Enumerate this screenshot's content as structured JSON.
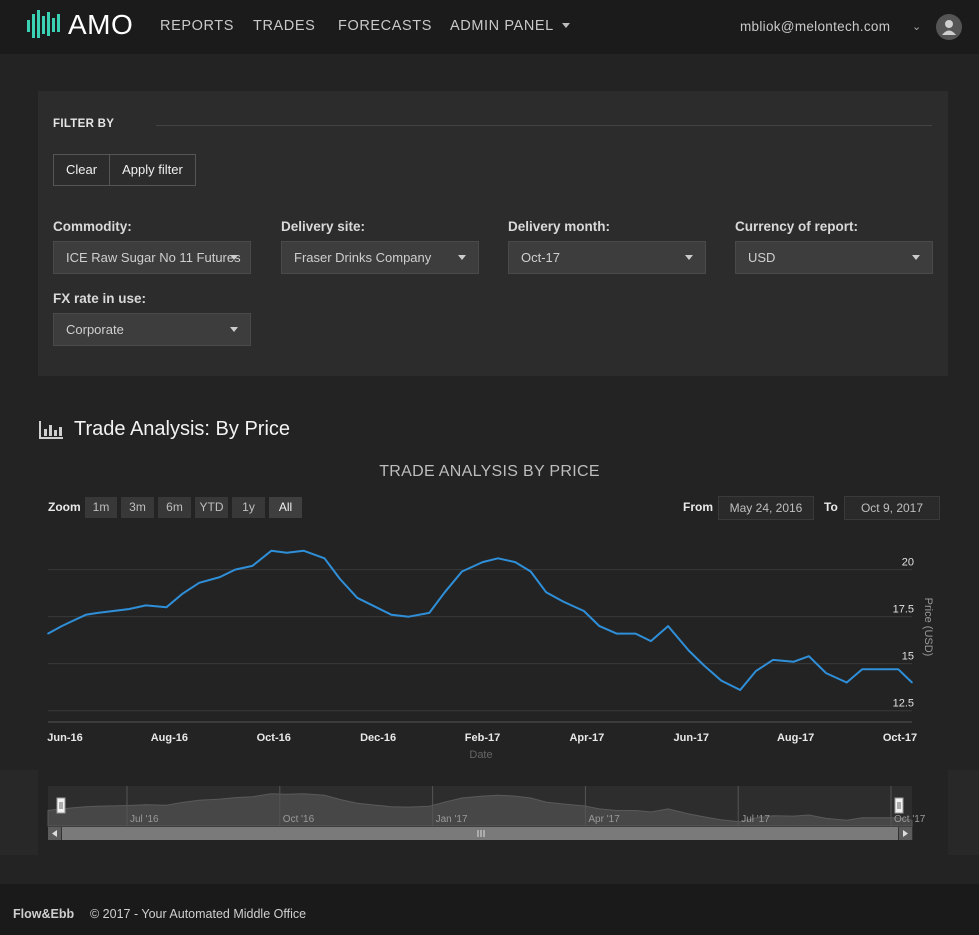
{
  "app": {
    "logo_text": "AMO",
    "nav": [
      {
        "label": "REPORTS"
      },
      {
        "label": "TRADES"
      },
      {
        "label": "FORECASTS"
      },
      {
        "label": "ADMIN PANEL"
      }
    ],
    "user_email": "mbliok@melontech.com",
    "icons": {
      "admin_dropdown": "caret-down-icon",
      "user_dropdown": "chevron-down-icon",
      "avatar": "user-avatar-icon",
      "section": "bar-chart-icon"
    }
  },
  "filter": {
    "title": "FILTER BY",
    "clear_label": "Clear",
    "apply_label": "Apply filter",
    "fields": [
      {
        "label": "Commodity:",
        "value": "ICE Raw Sugar No 11 Futures"
      },
      {
        "label": "Delivery site:",
        "value": "Fraser Drinks Company"
      },
      {
        "label": "Delivery month:",
        "value": "Oct-17"
      },
      {
        "label": "Currency of report:",
        "value": "USD"
      },
      {
        "label": "FX rate in use:",
        "value": "Corporate"
      }
    ]
  },
  "section": {
    "title": "Trade Analysis: By Price"
  },
  "chart_controls": {
    "zoom_label": "Zoom",
    "zoom_buttons": [
      "1m",
      "3m",
      "6m",
      "YTD",
      "1y",
      "All"
    ],
    "active_zoom": "All",
    "from_label": "From",
    "from_value": "May 24, 2016",
    "to_label": "To",
    "to_value": "Oct 9, 2017"
  },
  "chart_data": {
    "type": "line",
    "title": "TRADE ANALYSIS BY PRICE",
    "xlabel": "Date",
    "ylabel": "Price (USD)",
    "x_tick_labels": [
      "Jun-16",
      "Aug-16",
      "Oct-16",
      "Dec-16",
      "Feb-17",
      "Apr-17",
      "Jun-17",
      "Aug-17",
      "Oct-17"
    ],
    "y_ticks": [
      12.5,
      15,
      17.5,
      20
    ],
    "ylim": [
      11.9,
      22
    ],
    "grid": true,
    "color": "#2f8fd8",
    "navigator_labels": [
      "Jul '16",
      "Oct '16",
      "Jan '17",
      "Apr '17",
      "Jul '17",
      "Oct '17"
    ],
    "series": [
      {
        "x": [
          "2016-05-24",
          "2016-06-01",
          "2016-06-08",
          "2016-06-15",
          "2016-06-22",
          "2016-07-01",
          "2016-07-10",
          "2016-07-20",
          "2016-08-01",
          "2016-08-10",
          "2016-08-20",
          "2016-09-01",
          "2016-09-10",
          "2016-09-20",
          "2016-10-01",
          "2016-10-10",
          "2016-10-20",
          "2016-11-01",
          "2016-11-10",
          "2016-11-20",
          "2016-12-01",
          "2016-12-10",
          "2016-12-20",
          "2017-01-01",
          "2017-01-10",
          "2017-01-20",
          "2017-02-01",
          "2017-02-10",
          "2017-02-20",
          "2017-03-01",
          "2017-03-10",
          "2017-03-20",
          "2017-04-01",
          "2017-04-10",
          "2017-04-20",
          "2017-05-01",
          "2017-05-10",
          "2017-05-20",
          "2017-06-01",
          "2017-06-10",
          "2017-06-20",
          "2017-07-01",
          "2017-07-10",
          "2017-07-20",
          "2017-08-01",
          "2017-08-10",
          "2017-08-20",
          "2017-09-01",
          "2017-09-10",
          "2017-09-20",
          "2017-10-01",
          "2017-10-09"
        ],
        "y": [
          16.6,
          17.0,
          17.3,
          17.6,
          17.7,
          17.8,
          17.9,
          18.1,
          18.0,
          18.7,
          19.3,
          19.6,
          20.0,
          20.2,
          21.0,
          20.9,
          21.0,
          20.6,
          19.5,
          18.5,
          18.0,
          17.6,
          17.5,
          17.7,
          18.8,
          19.9,
          20.4,
          20.6,
          20.4,
          19.9,
          18.8,
          18.3,
          17.8,
          17.0,
          16.6,
          16.6,
          16.2,
          17.0,
          15.7,
          14.9,
          14.1,
          13.6,
          14.6,
          15.2,
          15.1,
          15.4,
          14.5,
          14.0,
          14.7,
          14.7,
          14.7,
          14.0
        ]
      }
    ]
  },
  "footer": {
    "brand": "Flow&Ebb",
    "copy": "© 2017 - Your Automated Middle Office"
  }
}
